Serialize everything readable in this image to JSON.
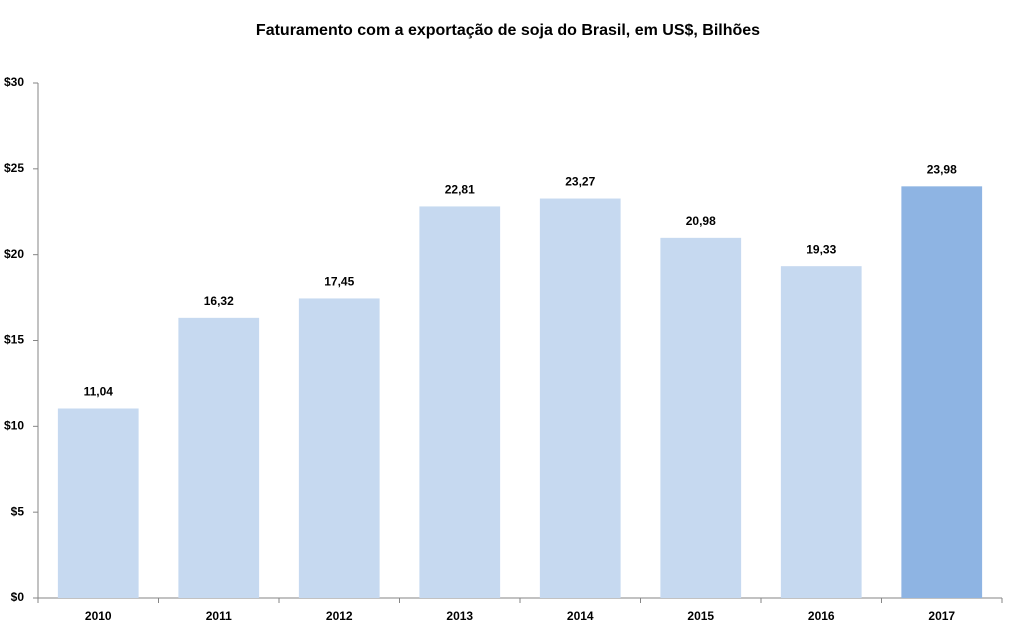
{
  "chart_data": {
    "type": "bar",
    "title": "Faturamento com a  exportação de soja do Brasil, em US$, Bilhões",
    "categories": [
      "2010",
      "2011",
      "2012",
      "2013",
      "2014",
      "2015",
      "2016",
      "2017"
    ],
    "values": [
      11.04,
      16.32,
      17.45,
      22.81,
      23.27,
      20.98,
      19.33,
      23.98
    ],
    "value_labels": [
      "11,04",
      "16,32",
      "17,45",
      "22,81",
      "23,27",
      "20,98",
      "19,33",
      "23,98"
    ],
    "colors": [
      "#c6d9f0",
      "#c6d9f0",
      "#c6d9f0",
      "#c6d9f0",
      "#c6d9f0",
      "#c6d9f0",
      "#c6d9f0",
      "#8eb4e3"
    ],
    "ylim": [
      0,
      30
    ],
    "yticks": [
      {
        "value": 0,
        "label": "$0"
      },
      {
        "value": 5,
        "label": "$5"
      },
      {
        "value": 10,
        "label": "$10"
      },
      {
        "value": 15,
        "label": "$15"
      },
      {
        "value": 20,
        "label": "$20"
      },
      {
        "value": 25,
        "label": "$25"
      },
      {
        "value": 30,
        "label": "$30"
      }
    ],
    "grid": false
  }
}
